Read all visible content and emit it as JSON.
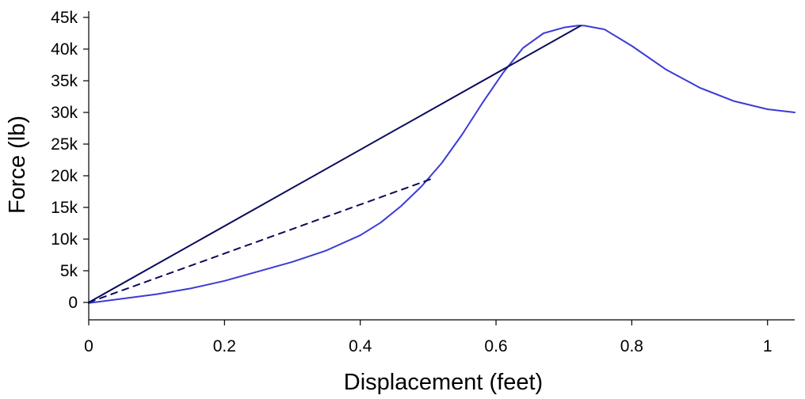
{
  "chart_data": {
    "type": "line",
    "title": "",
    "xlabel": "Displacement (feet)",
    "ylabel": "Force (lb)",
    "xlim": [
      0,
      1.04
    ],
    "ylim": [
      -2000,
      46000
    ],
    "grid": false,
    "legend": "none",
    "x_ticks": [
      {
        "value": 0,
        "label": "0"
      },
      {
        "value": 0.2,
        "label": "0.2"
      },
      {
        "value": 0.4,
        "label": "0.4"
      },
      {
        "value": 0.6,
        "label": "0.6"
      },
      {
        "value": 0.8,
        "label": "0.8"
      },
      {
        "value": 1,
        "label": "1"
      }
    ],
    "y_ticks": [
      {
        "value": 0,
        "label": "0"
      },
      {
        "value": 5000,
        "label": "5k"
      },
      {
        "value": 10000,
        "label": "10k"
      },
      {
        "value": 15000,
        "label": "15k"
      },
      {
        "value": 20000,
        "label": "20k"
      },
      {
        "value": 25000,
        "label": "25k"
      },
      {
        "value": 30000,
        "label": "30k"
      },
      {
        "value": 35000,
        "label": "35k"
      },
      {
        "value": 40000,
        "label": "40k"
      },
      {
        "value": 45000,
        "label": "45k"
      }
    ],
    "series": [
      {
        "color": "#3b3bd6",
        "style": "solid",
        "x": [
          0,
          0.05,
          0.1,
          0.15,
          0.2,
          0.25,
          0.3,
          0.35,
          0.4,
          0.43,
          0.46,
          0.49,
          0.52,
          0.55,
          0.58,
          0.61,
          0.64,
          0.67,
          0.7,
          0.72,
          0.73,
          0.76,
          0.8,
          0.85,
          0.9,
          0.95,
          1.0,
          1.04
        ],
        "y": [
          -100,
          600,
          1300,
          2200,
          3400,
          4900,
          6400,
          8200,
          10600,
          12600,
          15200,
          18300,
          22000,
          26500,
          31500,
          36200,
          40200,
          42500,
          43400,
          43700,
          43700,
          43100,
          40500,
          36800,
          33900,
          31800,
          30500,
          30000
        ]
      },
      {
        "color": "#0b0b5c",
        "style": "solid",
        "x": [
          0,
          0.725
        ],
        "y": [
          0,
          43700
        ]
      },
      {
        "color": "#0b0b5c",
        "style": "dashed",
        "x": [
          0,
          0.51
        ],
        "y": [
          0,
          19700
        ]
      }
    ]
  }
}
